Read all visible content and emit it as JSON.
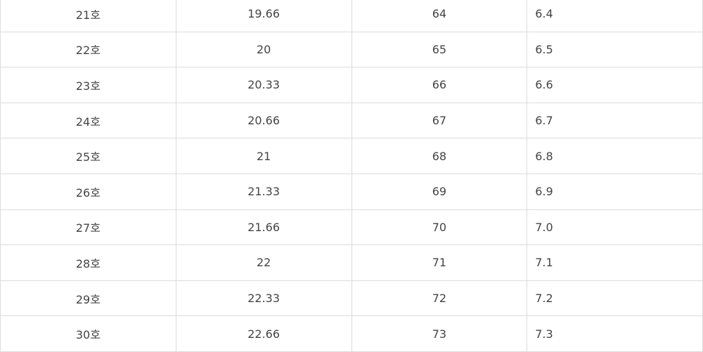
{
  "table": {
    "rows": [
      [
        "21호",
        "19.66",
        "64",
        "6.4"
      ],
      [
        "22호",
        "20",
        "65",
        "6.5"
      ],
      [
        "23호",
        "20.33",
        "66",
        "6.6"
      ],
      [
        "24호",
        "20.66",
        "67",
        "6.7"
      ],
      [
        "25호",
        "21",
        "68",
        "6.8"
      ],
      [
        "26호",
        "21.33",
        "69",
        "6.9"
      ],
      [
        "27호",
        "21.66",
        "70",
        "7.0"
      ],
      [
        "28호",
        "22",
        "71",
        "7.1"
      ],
      [
        "29호",
        "22.33",
        "72",
        "7.2"
      ],
      [
        "30호",
        "22.66",
        "73",
        "7.3"
      ]
    ]
  }
}
